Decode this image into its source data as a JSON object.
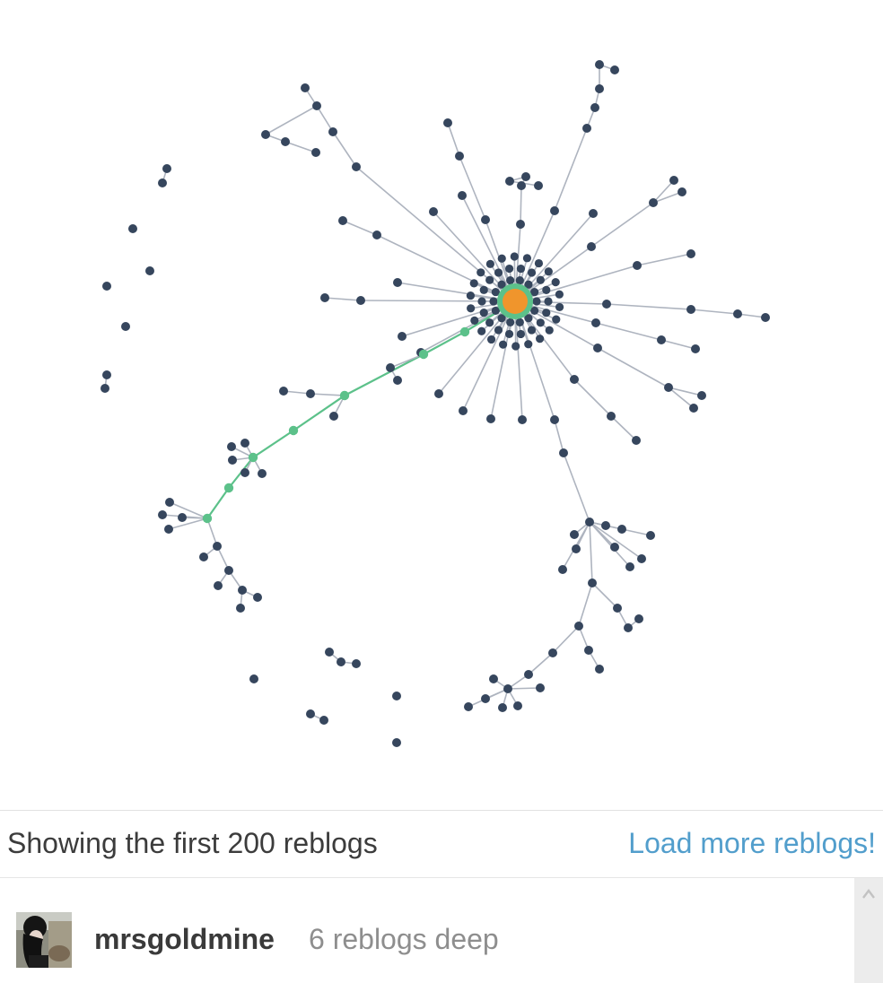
{
  "graph": {
    "colors": {
      "node": "#36465d",
      "edge": "#aeb4bf",
      "highlight": "#5cc18a",
      "root": "#f0952c"
    }
  },
  "footer": {
    "status_text": "Showing the first 200 reblogs",
    "load_more_label": "Load more reblogs!"
  },
  "reblog_entry": {
    "username": "mrsgoldmine",
    "depth_text": "6 reblogs deep"
  }
}
